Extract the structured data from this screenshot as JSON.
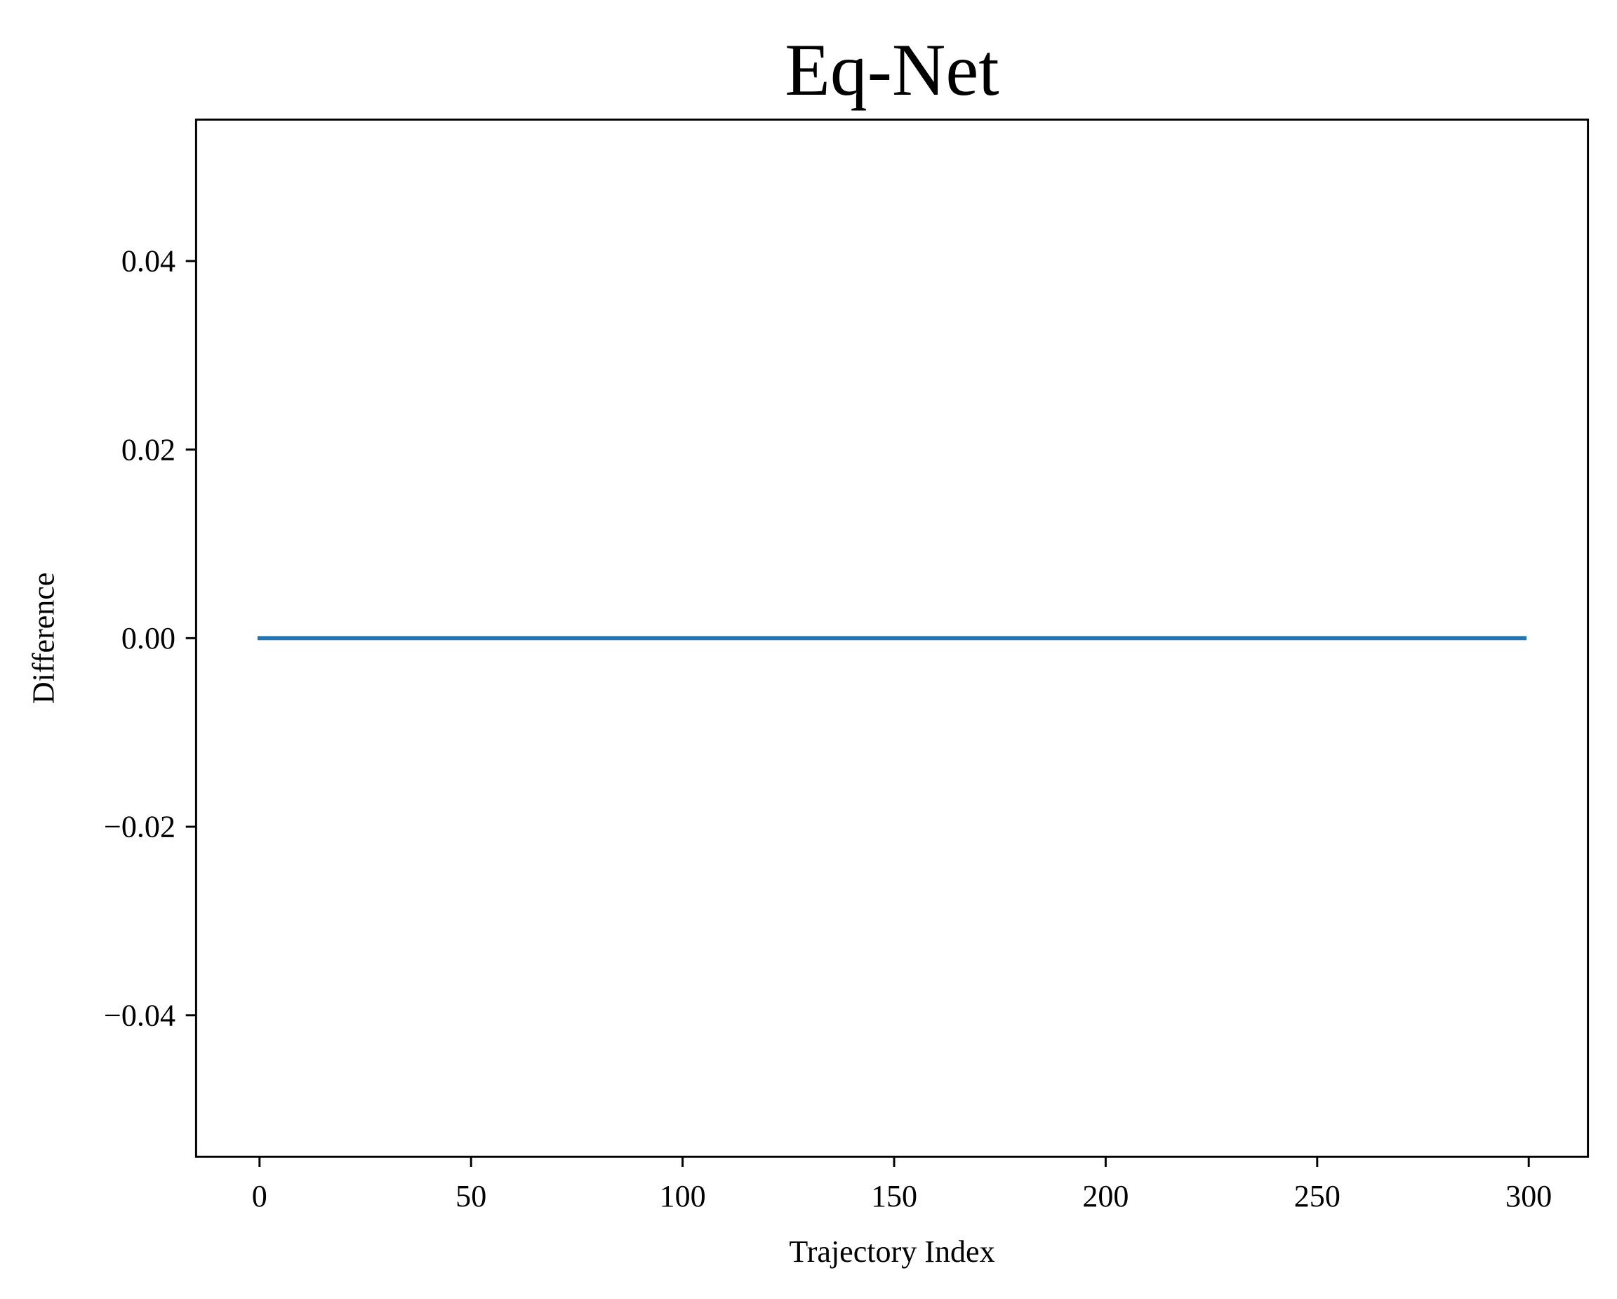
{
  "chart_data": {
    "type": "line",
    "title": "Eq-Net",
    "xlabel": "Trajectory Index",
    "ylabel": "Difference",
    "xlim": [
      -15,
      314
    ],
    "ylim": [
      -0.055,
      0.055
    ],
    "xticks": [
      0,
      50,
      100,
      150,
      200,
      250,
      300
    ],
    "xtick_labels": [
      "0",
      "50",
      "100",
      "150",
      "200",
      "250",
      "300"
    ],
    "yticks": [
      -0.04,
      -0.02,
      0.0,
      0.02,
      0.04
    ],
    "ytick_labels": [
      "−0.04",
      "−0.02",
      "0.00",
      "0.02",
      "0.04"
    ],
    "grid": false,
    "series": [
      {
        "color": "#1f77b4",
        "x": [
          0,
          299
        ],
        "y": [
          0,
          0
        ]
      }
    ]
  }
}
